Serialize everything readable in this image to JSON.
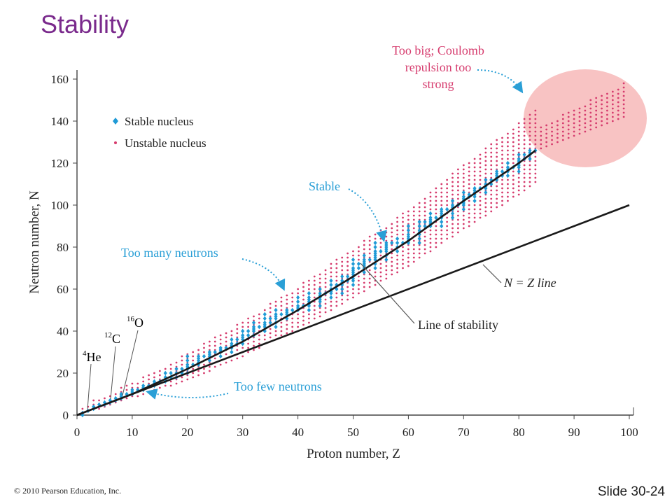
{
  "slide": {
    "title": "Stability",
    "copyright": "© 2010 Pearson Education, Inc.",
    "slide_number": "Slide 30-24"
  },
  "chart_data": {
    "type": "scatter",
    "xlabel": "Proton number, Z",
    "ylabel": "Neutron number, N",
    "xlim": [
      0,
      100
    ],
    "ylim": [
      0,
      160
    ],
    "x_ticks": [
      0,
      10,
      20,
      30,
      40,
      50,
      60,
      70,
      80,
      90,
      100
    ],
    "y_ticks": [
      0,
      20,
      40,
      60,
      80,
      100,
      120,
      140,
      160
    ],
    "grid": false,
    "legend": {
      "placement": "top-left",
      "entries": [
        {
          "label": "Stable nucleus",
          "color": "#1f9ad6",
          "marker": "diamond"
        },
        {
          "label": "Unstable nucleus",
          "color": "#d63c6e",
          "marker": "dot"
        }
      ]
    },
    "series": [
      {
        "name": "Stable nucleus",
        "points": [
          [
            1,
            0
          ],
          [
            1,
            1
          ],
          [
            2,
            2
          ],
          [
            3,
            3
          ],
          [
            3,
            4
          ],
          [
            4,
            5
          ],
          [
            5,
            5
          ],
          [
            5,
            6
          ],
          [
            6,
            6
          ],
          [
            6,
            7
          ],
          [
            7,
            7
          ],
          [
            7,
            8
          ],
          [
            8,
            8
          ],
          [
            8,
            9
          ],
          [
            8,
            10
          ],
          [
            9,
            10
          ],
          [
            10,
            10
          ],
          [
            10,
            11
          ],
          [
            10,
            12
          ],
          [
            11,
            12
          ],
          [
            12,
            12
          ],
          [
            12,
            13
          ],
          [
            12,
            14
          ],
          [
            13,
            14
          ],
          [
            14,
            14
          ],
          [
            14,
            15
          ],
          [
            14,
            16
          ],
          [
            15,
            16
          ],
          [
            16,
            16
          ],
          [
            16,
            17
          ],
          [
            16,
            18
          ],
          [
            16,
            20
          ],
          [
            17,
            18
          ],
          [
            17,
            20
          ],
          [
            18,
            18
          ],
          [
            18,
            20
          ],
          [
            18,
            22
          ],
          [
            19,
            20
          ],
          [
            19,
            22
          ],
          [
            20,
            20
          ],
          [
            20,
            22
          ],
          [
            20,
            23
          ],
          [
            20,
            24
          ],
          [
            20,
            26
          ],
          [
            20,
            28
          ],
          [
            21,
            24
          ],
          [
            22,
            24
          ],
          [
            22,
            25
          ],
          [
            22,
            26
          ],
          [
            22,
            27
          ],
          [
            22,
            28
          ],
          [
            23,
            28
          ],
          [
            24,
            26
          ],
          [
            24,
            28
          ],
          [
            24,
            29
          ],
          [
            24,
            30
          ],
          [
            25,
            30
          ],
          [
            26,
            28
          ],
          [
            26,
            30
          ],
          [
            26,
            31
          ],
          [
            26,
            32
          ],
          [
            27,
            32
          ],
          [
            28,
            30
          ],
          [
            28,
            32
          ],
          [
            28,
            33
          ],
          [
            28,
            34
          ],
          [
            28,
            36
          ],
          [
            29,
            34
          ],
          [
            29,
            36
          ],
          [
            30,
            34
          ],
          [
            30,
            36
          ],
          [
            30,
            37
          ],
          [
            30,
            38
          ],
          [
            30,
            40
          ],
          [
            31,
            38
          ],
          [
            31,
            40
          ],
          [
            32,
            38
          ],
          [
            32,
            40
          ],
          [
            32,
            41
          ],
          [
            32,
            42
          ],
          [
            32,
            44
          ],
          [
            33,
            42
          ],
          [
            34,
            40
          ],
          [
            34,
            42
          ],
          [
            34,
            43
          ],
          [
            34,
            44
          ],
          [
            34,
            46
          ],
          [
            34,
            48
          ],
          [
            35,
            44
          ],
          [
            35,
            46
          ],
          [
            36,
            42
          ],
          [
            36,
            44
          ],
          [
            36,
            46
          ],
          [
            36,
            47
          ],
          [
            36,
            48
          ],
          [
            36,
            50
          ],
          [
            37,
            48
          ],
          [
            38,
            46
          ],
          [
            38,
            48
          ],
          [
            38,
            49
          ],
          [
            38,
            50
          ],
          [
            39,
            50
          ],
          [
            40,
            50
          ],
          [
            40,
            51
          ],
          [
            40,
            52
          ],
          [
            40,
            54
          ],
          [
            40,
            56
          ],
          [
            41,
            52
          ],
          [
            42,
            50
          ],
          [
            42,
            52
          ],
          [
            42,
            53
          ],
          [
            42,
            54
          ],
          [
            42,
            55
          ],
          [
            42,
            56
          ],
          [
            42,
            58
          ],
          [
            44,
            52
          ],
          [
            44,
            54
          ],
          [
            44,
            55
          ],
          [
            44,
            56
          ],
          [
            44,
            57
          ],
          [
            44,
            58
          ],
          [
            44,
            60
          ],
          [
            45,
            58
          ],
          [
            46,
            56
          ],
          [
            46,
            58
          ],
          [
            46,
            59
          ],
          [
            46,
            60
          ],
          [
            46,
            62
          ],
          [
            46,
            64
          ],
          [
            47,
            60
          ],
          [
            47,
            62
          ],
          [
            48,
            58
          ],
          [
            48,
            60
          ],
          [
            48,
            62
          ],
          [
            48,
            63
          ],
          [
            48,
            64
          ],
          [
            48,
            66
          ],
          [
            49,
            64
          ],
          [
            49,
            66
          ],
          [
            50,
            62
          ],
          [
            50,
            64
          ],
          [
            50,
            65
          ],
          [
            50,
            66
          ],
          [
            50,
            67
          ],
          [
            50,
            68
          ],
          [
            50,
            69
          ],
          [
            50,
            70
          ],
          [
            50,
            72
          ],
          [
            50,
            74
          ],
          [
            51,
            70
          ],
          [
            51,
            72
          ],
          [
            52,
            68
          ],
          [
            52,
            70
          ],
          [
            52,
            71
          ],
          [
            52,
            72
          ],
          [
            52,
            73
          ],
          [
            52,
            74
          ],
          [
            52,
            76
          ],
          [
            53,
            74
          ],
          [
            54,
            70
          ],
          [
            54,
            72
          ],
          [
            54,
            74
          ],
          [
            54,
            75
          ],
          [
            54,
            76
          ],
          [
            54,
            77
          ],
          [
            54,
            78
          ],
          [
            54,
            80
          ],
          [
            54,
            82
          ],
          [
            55,
            78
          ],
          [
            56,
            74
          ],
          [
            56,
            76
          ],
          [
            56,
            78
          ],
          [
            56,
            79
          ],
          [
            56,
            80
          ],
          [
            56,
            81
          ],
          [
            56,
            82
          ],
          [
            57,
            82
          ],
          [
            58,
            78
          ],
          [
            58,
            80
          ],
          [
            58,
            82
          ],
          [
            58,
            84
          ],
          [
            59,
            82
          ],
          [
            60,
            82
          ],
          [
            60,
            83
          ],
          [
            60,
            84
          ],
          [
            60,
            85
          ],
          [
            60,
            86
          ],
          [
            60,
            88
          ],
          [
            60,
            90
          ],
          [
            62,
            82
          ],
          [
            62,
            84
          ],
          [
            62,
            86
          ],
          [
            62,
            87
          ],
          [
            62,
            88
          ],
          [
            62,
            90
          ],
          [
            62,
            92
          ],
          [
            63,
            90
          ],
          [
            63,
            92
          ],
          [
            64,
            90
          ],
          [
            64,
            91
          ],
          [
            64,
            92
          ],
          [
            64,
            93
          ],
          [
            64,
            94
          ],
          [
            64,
            96
          ],
          [
            65,
            94
          ],
          [
            66,
            90
          ],
          [
            66,
            92
          ],
          [
            66,
            94
          ],
          [
            66,
            95
          ],
          [
            66,
            96
          ],
          [
            66,
            97
          ],
          [
            66,
            98
          ],
          [
            67,
            98
          ],
          [
            68,
            94
          ],
          [
            68,
            96
          ],
          [
            68,
            98
          ],
          [
            68,
            99
          ],
          [
            68,
            100
          ],
          [
            68,
            102
          ],
          [
            69,
            100
          ],
          [
            70,
            98
          ],
          [
            70,
            100
          ],
          [
            70,
            101
          ],
          [
            70,
            102
          ],
          [
            70,
            103
          ],
          [
            70,
            104
          ],
          [
            70,
            106
          ],
          [
            71,
            104
          ],
          [
            71,
            105
          ],
          [
            72,
            102
          ],
          [
            72,
            104
          ],
          [
            72,
            105
          ],
          [
            72,
            106
          ],
          [
            72,
            107
          ],
          [
            72,
            108
          ],
          [
            73,
            108
          ],
          [
            74,
            106
          ],
          [
            74,
            108
          ],
          [
            74,
            109
          ],
          [
            74,
            110
          ],
          [
            74,
            112
          ],
          [
            75,
            110
          ],
          [
            75,
            112
          ],
          [
            76,
            112
          ],
          [
            76,
            113
          ],
          [
            76,
            114
          ],
          [
            76,
            115
          ],
          [
            76,
            116
          ],
          [
            77,
            114
          ],
          [
            77,
            116
          ],
          [
            78,
            114
          ],
          [
            78,
            116
          ],
          [
            78,
            117
          ],
          [
            78,
            118
          ],
          [
            78,
            120
          ],
          [
            79,
            118
          ],
          [
            80,
            116
          ],
          [
            80,
            118
          ],
          [
            80,
            119
          ],
          [
            80,
            120
          ],
          [
            80,
            121
          ],
          [
            80,
            122
          ],
          [
            80,
            124
          ],
          [
            81,
            122
          ],
          [
            81,
            124
          ],
          [
            82,
            122
          ],
          [
            82,
            124
          ],
          [
            82,
            125
          ],
          [
            82,
            126
          ],
          [
            83,
            126
          ]
        ]
      },
      {
        "name": "Unstable nucleus",
        "description": "Band of unstable nuclides surrounding the stability line (about Z−2 to 2Z−14 neutrons for Z≥6), extending to Z≈99",
        "band": {
          "z_min": 1,
          "z_max": 99,
          "step_n": 2
        }
      }
    ],
    "curves": [
      {
        "name": "Line of stability",
        "points": [
          [
            0,
            0
          ],
          [
            10,
            10
          ],
          [
            20,
            22
          ],
          [
            30,
            35
          ],
          [
            40,
            50
          ],
          [
            50,
            66
          ],
          [
            60,
            83
          ],
          [
            70,
            102
          ],
          [
            80,
            120
          ],
          [
            83,
            126
          ]
        ]
      },
      {
        "name": "N = Z line",
        "points": [
          [
            0,
            0
          ],
          [
            100,
            100
          ]
        ]
      }
    ],
    "annotations": {
      "too_big": [
        "Too big; Coulomb",
        "repulsion too",
        "strong"
      ],
      "stable": "Stable",
      "too_many": "Too many neutrons",
      "too_few": "Too few neutrons",
      "line_of_stability": "Line of stability",
      "nz_line": "N = Z line",
      "he4": {
        "mass": "4",
        "symbol": "He"
      },
      "c12": {
        "mass": "12",
        "symbol": "C"
      },
      "o16": {
        "mass": "16",
        "symbol": "O"
      }
    },
    "colors": {
      "stable": "#1f9ad6",
      "unstable": "#d63c6e",
      "highlight": "#f7b9b9",
      "title": "#7a2a8c"
    }
  }
}
